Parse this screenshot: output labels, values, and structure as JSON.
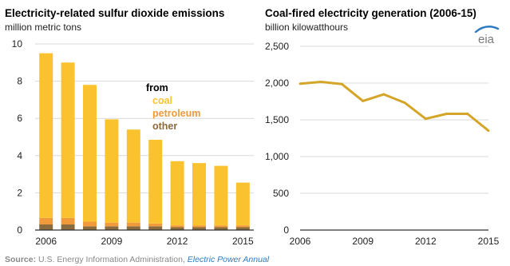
{
  "chart_data": [
    {
      "type": "bar",
      "stacked": true,
      "title": "Electricity-related sulfur dioxide emissions",
      "subtitle": "million metric tons",
      "x": [
        2006,
        2007,
        2008,
        2009,
        2010,
        2011,
        2012,
        2013,
        2014,
        2015
      ],
      "x_tick_labels": [
        "2006",
        "2009",
        "2012",
        "2015"
      ],
      "ylim": [
        0,
        10
      ],
      "y_ticks": [
        0,
        2,
        4,
        6,
        8,
        10
      ],
      "grid": true,
      "legend_title": "from",
      "series": [
        {
          "name": "other",
          "color": "#8a6b3e",
          "values": [
            0.3,
            0.3,
            0.2,
            0.2,
            0.2,
            0.2,
            0.15,
            0.15,
            0.15,
            0.15
          ]
        },
        {
          "name": "petroleum",
          "color": "#f09a3c",
          "values": [
            0.35,
            0.35,
            0.25,
            0.2,
            0.2,
            0.15,
            0.1,
            0.1,
            0.1,
            0.1
          ]
        },
        {
          "name": "coal",
          "color": "#f9c22e",
          "values": [
            8.85,
            8.35,
            7.35,
            5.55,
            5.0,
            4.5,
            3.45,
            3.35,
            3.2,
            2.3
          ]
        }
      ]
    },
    {
      "type": "line",
      "title": "Coal-fired electricity generation (2006-15)",
      "subtitle": "billion kilowatthours",
      "x": [
        2006,
        2007,
        2008,
        2009,
        2010,
        2011,
        2012,
        2013,
        2014,
        2015
      ],
      "x_tick_labels": [
        "2006",
        "2009",
        "2012",
        "2015"
      ],
      "ylim": [
        0,
        2500
      ],
      "y_ticks": [
        0,
        500,
        1000,
        1500,
        2000,
        2500
      ],
      "y_tick_labels": [
        "0",
        "500",
        "1,000",
        "1,500",
        "2,000",
        "2,500"
      ],
      "grid": true,
      "series": [
        {
          "color": "#d4a528",
          "values": [
            1991,
            2016,
            1986,
            1756,
            1847,
            1733,
            1514,
            1581,
            1582,
            1352
          ]
        }
      ]
    }
  ],
  "brand": {
    "logo_text": "eia"
  },
  "source": {
    "label": "Source:",
    "text": " U.S. Energy Information Administration, ",
    "link": "Electric Power Annual"
  }
}
